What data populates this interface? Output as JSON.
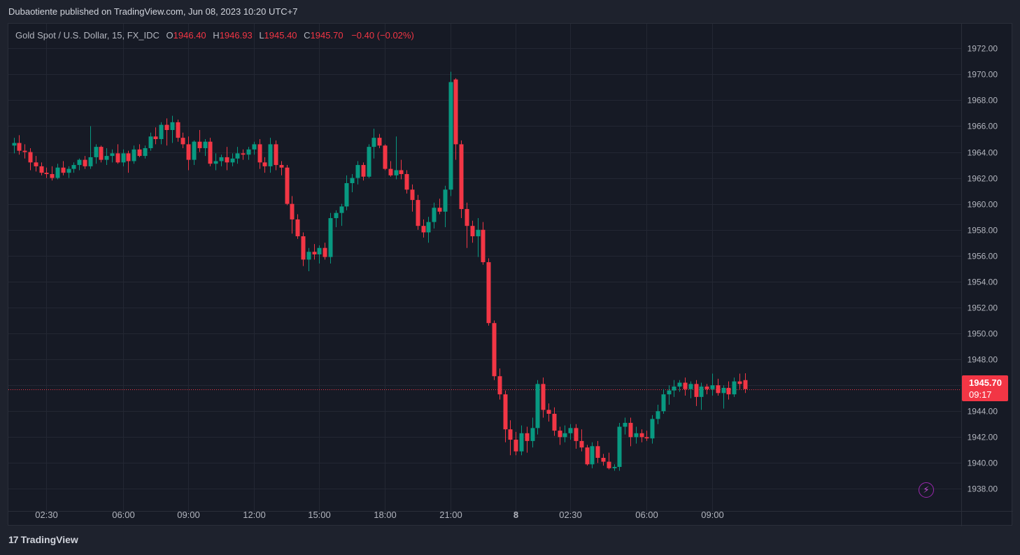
{
  "header": {
    "published_line": "Dubaotiente published on TradingView.com, Jun 08, 2023 10:20 UTC+7"
  },
  "legend": {
    "symbol": "Gold Spot / U.S. Dollar, 15, FX_IDC",
    "open_key": "O",
    "open_value": "1946.40",
    "high_key": "H",
    "high_value": "1946.93",
    "low_key": "L",
    "low_value": "1945.40",
    "close_key": "C",
    "close_value": "1945.70",
    "change": "−0.40 (−0.02%)"
  },
  "price_badge": {
    "price": "1945.70",
    "countdown": "09:17"
  },
  "footer": {
    "brand": "TradingView",
    "brand_mark": "17"
  },
  "colors": {
    "up": "#089981",
    "down": "#f23645",
    "background": "#161a25",
    "grid": "#232733",
    "axis_text": "#b2b5be",
    "accent": "#9c27b0"
  },
  "icons": {
    "flash": "lightning-icon"
  },
  "chart_data": {
    "type": "candlestick",
    "timeframe": "15",
    "symbol": "Gold Spot / U.S. Dollar",
    "x_ticks": [
      {
        "label": "02:30",
        "bar": 6
      },
      {
        "label": "06:00",
        "bar": 20
      },
      {
        "label": "09:00",
        "bar": 32
      },
      {
        "label": "12:00",
        "bar": 44
      },
      {
        "label": "15:00",
        "bar": 56
      },
      {
        "label": "18:00",
        "bar": 68
      },
      {
        "label": "21:00",
        "bar": 80
      },
      {
        "label": "8",
        "bar": 92
      },
      {
        "label": "02:30",
        "bar": 102
      },
      {
        "label": "06:00",
        "bar": 116
      },
      {
        "label": "09:00",
        "bar": 128
      }
    ],
    "y_ticks": [
      "1938.00",
      "1940.00",
      "1942.00",
      "1944.00",
      "1946.00",
      "1948.00",
      "1950.00",
      "1952.00",
      "1954.00",
      "1956.00",
      "1958.00",
      "1960.00",
      "1962.00",
      "1964.00",
      "1966.00",
      "1968.00",
      "1970.00",
      "1972.00"
    ],
    "ylim": [
      1936.3,
      1973.9
    ],
    "last_price": 1945.7,
    "candles": [
      {
        "o": 1964.5,
        "h": 1965.1,
        "l": 1963.9,
        "c": 1964.7
      },
      {
        "o": 1964.7,
        "h": 1965.3,
        "l": 1963.8,
        "c": 1964.1
      },
      {
        "o": 1964.1,
        "h": 1964.6,
        "l": 1963.5,
        "c": 1964.0
      },
      {
        "o": 1964.0,
        "h": 1964.3,
        "l": 1962.6,
        "c": 1963.2
      },
      {
        "o": 1963.2,
        "h": 1963.7,
        "l": 1962.5,
        "c": 1962.9
      },
      {
        "o": 1962.9,
        "h": 1963.2,
        "l": 1962.2,
        "c": 1962.4
      },
      {
        "o": 1962.4,
        "h": 1962.8,
        "l": 1962.0,
        "c": 1962.3
      },
      {
        "o": 1962.3,
        "h": 1962.9,
        "l": 1961.8,
        "c": 1962.0
      },
      {
        "o": 1962.0,
        "h": 1963.1,
        "l": 1961.9,
        "c": 1962.8
      },
      {
        "o": 1962.8,
        "h": 1963.3,
        "l": 1962.2,
        "c": 1962.4
      },
      {
        "o": 1962.4,
        "h": 1962.9,
        "l": 1962.0,
        "c": 1962.7
      },
      {
        "o": 1962.7,
        "h": 1963.2,
        "l": 1962.4,
        "c": 1963.0
      },
      {
        "o": 1963.0,
        "h": 1963.5,
        "l": 1962.6,
        "c": 1963.4
      },
      {
        "o": 1963.4,
        "h": 1963.7,
        "l": 1962.7,
        "c": 1962.9
      },
      {
        "o": 1962.9,
        "h": 1966.0,
        "l": 1962.7,
        "c": 1963.6
      },
      {
        "o": 1963.6,
        "h": 1964.6,
        "l": 1963.1,
        "c": 1964.4
      },
      {
        "o": 1964.4,
        "h": 1964.5,
        "l": 1963.2,
        "c": 1963.4
      },
      {
        "o": 1963.4,
        "h": 1964.3,
        "l": 1963.0,
        "c": 1963.7
      },
      {
        "o": 1963.7,
        "h": 1964.2,
        "l": 1963.2,
        "c": 1963.9
      },
      {
        "o": 1963.9,
        "h": 1964.6,
        "l": 1963.1,
        "c": 1963.2
      },
      {
        "o": 1963.2,
        "h": 1964.2,
        "l": 1962.9,
        "c": 1963.9
      },
      {
        "o": 1963.9,
        "h": 1964.1,
        "l": 1962.4,
        "c": 1963.3
      },
      {
        "o": 1963.3,
        "h": 1964.5,
        "l": 1963.1,
        "c": 1964.2
      },
      {
        "o": 1964.2,
        "h": 1964.6,
        "l": 1963.6,
        "c": 1963.7
      },
      {
        "o": 1963.7,
        "h": 1964.5,
        "l": 1963.5,
        "c": 1964.3
      },
      {
        "o": 1964.3,
        "h": 1965.5,
        "l": 1964.1,
        "c": 1965.2
      },
      {
        "o": 1965.2,
        "h": 1965.9,
        "l": 1964.6,
        "c": 1965.0
      },
      {
        "o": 1965.0,
        "h": 1966.3,
        "l": 1964.6,
        "c": 1966.1
      },
      {
        "o": 1966.1,
        "h": 1966.6,
        "l": 1964.5,
        "c": 1965.7
      },
      {
        "o": 1965.7,
        "h": 1966.8,
        "l": 1964.7,
        "c": 1966.3
      },
      {
        "o": 1966.3,
        "h": 1966.5,
        "l": 1964.8,
        "c": 1965.1
      },
      {
        "o": 1965.1,
        "h": 1965.5,
        "l": 1964.3,
        "c": 1964.6
      },
      {
        "o": 1964.6,
        "h": 1965.2,
        "l": 1962.6,
        "c": 1963.4
      },
      {
        "o": 1963.4,
        "h": 1964.9,
        "l": 1963.0,
        "c": 1964.8
      },
      {
        "o": 1964.8,
        "h": 1965.7,
        "l": 1964.0,
        "c": 1964.3
      },
      {
        "o": 1964.3,
        "h": 1965.0,
        "l": 1963.7,
        "c": 1964.8
      },
      {
        "o": 1964.8,
        "h": 1965.1,
        "l": 1962.9,
        "c": 1963.1
      },
      {
        "o": 1963.1,
        "h": 1963.9,
        "l": 1962.6,
        "c": 1963.3
      },
      {
        "o": 1963.3,
        "h": 1963.8,
        "l": 1962.9,
        "c": 1963.6
      },
      {
        "o": 1963.6,
        "h": 1964.4,
        "l": 1962.6,
        "c": 1963.2
      },
      {
        "o": 1963.2,
        "h": 1963.9,
        "l": 1962.9,
        "c": 1963.5
      },
      {
        "o": 1963.5,
        "h": 1964.4,
        "l": 1963.1,
        "c": 1963.9
      },
      {
        "o": 1963.9,
        "h": 1964.2,
        "l": 1963.4,
        "c": 1963.8
      },
      {
        "o": 1963.8,
        "h": 1964.4,
        "l": 1963.4,
        "c": 1964.2
      },
      {
        "o": 1964.2,
        "h": 1964.8,
        "l": 1963.8,
        "c": 1964.6
      },
      {
        "o": 1964.6,
        "h": 1965.0,
        "l": 1962.7,
        "c": 1963.2
      },
      {
        "o": 1963.2,
        "h": 1963.6,
        "l": 1962.4,
        "c": 1962.9
      },
      {
        "o": 1962.9,
        "h": 1965.1,
        "l": 1962.4,
        "c": 1964.6
      },
      {
        "o": 1964.6,
        "h": 1964.9,
        "l": 1962.6,
        "c": 1963.0
      },
      {
        "o": 1963.0,
        "h": 1963.3,
        "l": 1962.2,
        "c": 1962.8
      },
      {
        "o": 1962.8,
        "h": 1963.0,
        "l": 1959.9,
        "c": 1960.0
      },
      {
        "o": 1960.0,
        "h": 1960.6,
        "l": 1957.7,
        "c": 1958.8
      },
      {
        "o": 1958.8,
        "h": 1959.2,
        "l": 1957.3,
        "c": 1957.5
      },
      {
        "o": 1957.5,
        "h": 1957.8,
        "l": 1955.2,
        "c": 1955.7
      },
      {
        "o": 1955.7,
        "h": 1956.6,
        "l": 1954.8,
        "c": 1956.3
      },
      {
        "o": 1956.3,
        "h": 1956.9,
        "l": 1955.7,
        "c": 1956.1
      },
      {
        "o": 1956.1,
        "h": 1956.8,
        "l": 1955.4,
        "c": 1956.6
      },
      {
        "o": 1956.6,
        "h": 1957.0,
        "l": 1955.7,
        "c": 1955.9
      },
      {
        "o": 1955.9,
        "h": 1959.3,
        "l": 1955.4,
        "c": 1958.9
      },
      {
        "o": 1958.9,
        "h": 1959.5,
        "l": 1958.2,
        "c": 1959.3
      },
      {
        "o": 1959.3,
        "h": 1960.0,
        "l": 1958.3,
        "c": 1959.8
      },
      {
        "o": 1959.8,
        "h": 1962.2,
        "l": 1959.5,
        "c": 1961.6
      },
      {
        "o": 1961.6,
        "h": 1962.3,
        "l": 1960.9,
        "c": 1962.0
      },
      {
        "o": 1962.0,
        "h": 1963.3,
        "l": 1961.5,
        "c": 1963.0
      },
      {
        "o": 1963.0,
        "h": 1963.2,
        "l": 1961.8,
        "c": 1962.1
      },
      {
        "o": 1962.1,
        "h": 1964.6,
        "l": 1962.0,
        "c": 1964.4
      },
      {
        "o": 1964.4,
        "h": 1965.8,
        "l": 1963.5,
        "c": 1965.1
      },
      {
        "o": 1965.1,
        "h": 1965.4,
        "l": 1964.3,
        "c": 1964.5
      },
      {
        "o": 1964.5,
        "h": 1964.6,
        "l": 1962.6,
        "c": 1962.7
      },
      {
        "o": 1962.7,
        "h": 1963.3,
        "l": 1962.1,
        "c": 1962.2
      },
      {
        "o": 1962.2,
        "h": 1965.2,
        "l": 1961.9,
        "c": 1962.6
      },
      {
        "o": 1962.6,
        "h": 1963.4,
        "l": 1961.9,
        "c": 1962.3
      },
      {
        "o": 1962.3,
        "h": 1962.6,
        "l": 1960.8,
        "c": 1961.1
      },
      {
        "o": 1961.1,
        "h": 1961.5,
        "l": 1959.4,
        "c": 1960.3
      },
      {
        "o": 1960.3,
        "h": 1960.7,
        "l": 1958.0,
        "c": 1958.3
      },
      {
        "o": 1958.3,
        "h": 1958.8,
        "l": 1957.4,
        "c": 1957.8
      },
      {
        "o": 1957.8,
        "h": 1959.0,
        "l": 1957.0,
        "c": 1958.6
      },
      {
        "o": 1958.6,
        "h": 1960.1,
        "l": 1958.1,
        "c": 1959.7
      },
      {
        "o": 1959.7,
        "h": 1960.4,
        "l": 1959.2,
        "c": 1959.4
      },
      {
        "o": 1959.4,
        "h": 1961.4,
        "l": 1958.2,
        "c": 1961.1
      },
      {
        "o": 1961.1,
        "h": 1970.2,
        "l": 1960.6,
        "c": 1969.4
      },
      {
        "o": 1969.6,
        "h": 1969.7,
        "l": 1963.4,
        "c": 1964.6
      },
      {
        "o": 1964.6,
        "h": 1964.9,
        "l": 1958.9,
        "c": 1959.6
      },
      {
        "o": 1959.6,
        "h": 1960.1,
        "l": 1956.6,
        "c": 1958.3
      },
      {
        "o": 1958.3,
        "h": 1958.7,
        "l": 1957.0,
        "c": 1957.5
      },
      {
        "o": 1957.5,
        "h": 1958.9,
        "l": 1955.9,
        "c": 1958.0
      },
      {
        "o": 1958.0,
        "h": 1958.6,
        "l": 1955.3,
        "c": 1955.5
      },
      {
        "o": 1955.5,
        "h": 1955.8,
        "l": 1950.6,
        "c": 1950.8
      },
      {
        "o": 1950.8,
        "h": 1951.0,
        "l": 1946.4,
        "c": 1946.7
      },
      {
        "o": 1946.7,
        "h": 1947.3,
        "l": 1944.9,
        "c": 1945.3
      },
      {
        "o": 1945.3,
        "h": 1945.6,
        "l": 1941.6,
        "c": 1942.6
      },
      {
        "o": 1942.6,
        "h": 1943.3,
        "l": 1940.6,
        "c": 1941.8
      },
      {
        "o": 1941.8,
        "h": 1942.4,
        "l": 1940.6,
        "c": 1940.9
      },
      {
        "o": 1940.9,
        "h": 1942.9,
        "l": 1940.6,
        "c": 1942.3
      },
      {
        "o": 1942.3,
        "h": 1942.8,
        "l": 1940.8,
        "c": 1941.7
      },
      {
        "o": 1941.7,
        "h": 1943.5,
        "l": 1941.2,
        "c": 1942.7
      },
      {
        "o": 1942.7,
        "h": 1946.4,
        "l": 1942.2,
        "c": 1946.1
      },
      {
        "o": 1946.1,
        "h": 1946.6,
        "l": 1943.5,
        "c": 1944.1
      },
      {
        "o": 1944.1,
        "h": 1944.6,
        "l": 1943.2,
        "c": 1943.8
      },
      {
        "o": 1943.8,
        "h": 1944.3,
        "l": 1942.1,
        "c": 1942.5
      },
      {
        "o": 1942.5,
        "h": 1942.8,
        "l": 1941.4,
        "c": 1942.0
      },
      {
        "o": 1942.0,
        "h": 1942.9,
        "l": 1941.6,
        "c": 1942.3
      },
      {
        "o": 1942.3,
        "h": 1943.0,
        "l": 1941.8,
        "c": 1942.7
      },
      {
        "o": 1942.7,
        "h": 1943.0,
        "l": 1941.1,
        "c": 1941.7
      },
      {
        "o": 1941.7,
        "h": 1942.6,
        "l": 1940.9,
        "c": 1941.2
      },
      {
        "o": 1941.2,
        "h": 1941.4,
        "l": 1939.8,
        "c": 1939.9
      },
      {
        "o": 1939.9,
        "h": 1941.6,
        "l": 1939.6,
        "c": 1941.3
      },
      {
        "o": 1941.3,
        "h": 1941.7,
        "l": 1940.0,
        "c": 1940.4
      },
      {
        "o": 1940.4,
        "h": 1940.7,
        "l": 1939.8,
        "c": 1940.1
      },
      {
        "o": 1940.1,
        "h": 1940.8,
        "l": 1939.5,
        "c": 1939.6
      },
      {
        "o": 1939.6,
        "h": 1939.9,
        "l": 1939.4,
        "c": 1939.7
      },
      {
        "o": 1939.7,
        "h": 1943.1,
        "l": 1939.4,
        "c": 1942.8
      },
      {
        "o": 1942.8,
        "h": 1943.5,
        "l": 1942.2,
        "c": 1943.1
      },
      {
        "o": 1943.1,
        "h": 1943.5,
        "l": 1941.3,
        "c": 1942.0
      },
      {
        "o": 1942.0,
        "h": 1942.8,
        "l": 1941.5,
        "c": 1942.3
      },
      {
        "o": 1942.3,
        "h": 1942.6,
        "l": 1941.6,
        "c": 1942.0
      },
      {
        "o": 1942.0,
        "h": 1942.5,
        "l": 1941.7,
        "c": 1941.9
      },
      {
        "o": 1941.9,
        "h": 1943.7,
        "l": 1941.5,
        "c": 1943.4
      },
      {
        "o": 1943.4,
        "h": 1944.5,
        "l": 1943.0,
        "c": 1944.0
      },
      {
        "o": 1944.0,
        "h": 1945.7,
        "l": 1943.8,
        "c": 1945.3
      },
      {
        "o": 1945.3,
        "h": 1946.0,
        "l": 1944.5,
        "c": 1945.6
      },
      {
        "o": 1945.6,
        "h": 1946.4,
        "l": 1945.1,
        "c": 1945.9
      },
      {
        "o": 1945.9,
        "h": 1946.4,
        "l": 1945.5,
        "c": 1946.2
      },
      {
        "o": 1946.2,
        "h": 1946.6,
        "l": 1945.2,
        "c": 1945.7
      },
      {
        "o": 1945.7,
        "h": 1946.3,
        "l": 1945.0,
        "c": 1946.1
      },
      {
        "o": 1946.1,
        "h": 1946.4,
        "l": 1944.4,
        "c": 1945.1
      },
      {
        "o": 1945.1,
        "h": 1946.2,
        "l": 1944.1,
        "c": 1945.9
      },
      {
        "o": 1945.9,
        "h": 1946.1,
        "l": 1945.3,
        "c": 1945.7
      },
      {
        "o": 1945.7,
        "h": 1946.9,
        "l": 1945.2,
        "c": 1946.0
      },
      {
        "o": 1946.0,
        "h": 1946.5,
        "l": 1945.2,
        "c": 1945.4
      },
      {
        "o": 1945.4,
        "h": 1946.0,
        "l": 1944.2,
        "c": 1945.8
      },
      {
        "o": 1945.8,
        "h": 1946.3,
        "l": 1944.9,
        "c": 1945.3
      },
      {
        "o": 1945.3,
        "h": 1946.6,
        "l": 1945.1,
        "c": 1946.3
      },
      {
        "o": 1946.3,
        "h": 1946.9,
        "l": 1945.7,
        "c": 1946.1
      },
      {
        "o": 1946.4,
        "h": 1946.93,
        "l": 1945.4,
        "c": 1945.7
      }
    ]
  }
}
